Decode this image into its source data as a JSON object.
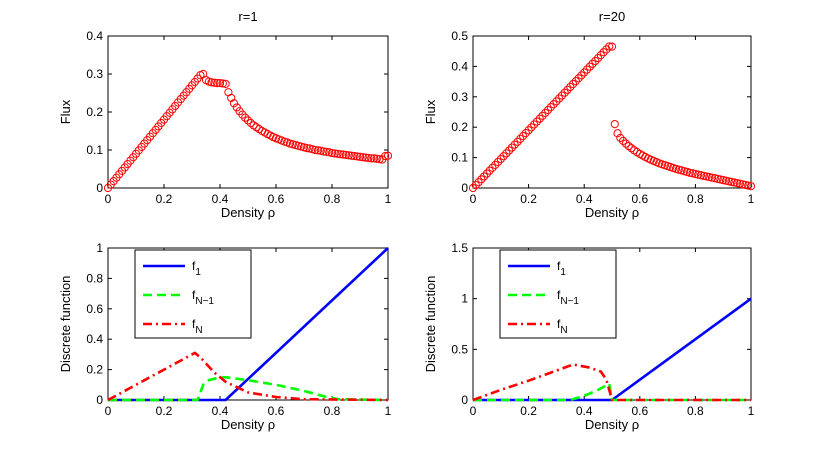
{
  "colors": {
    "flux_marker": "#ff0000",
    "f1": "#0000ff",
    "fN1": "#00ff00",
    "fN": "#ff0000",
    "axis": "#000000"
  },
  "chart_data": [
    {
      "type": "scatter",
      "title": "r=1",
      "xlabel": "Density ρ",
      "ylabel": "Flux",
      "xlim": [
        0,
        1
      ],
      "ylim": [
        0,
        0.4
      ],
      "xticks": [
        "0",
        "0.2",
        "0.4",
        "0.6",
        "0.8",
        "1"
      ],
      "yticks": [
        "0",
        "0.1",
        "0.2",
        "0.3",
        "0.4"
      ],
      "marker": "circle",
      "x": [
        0,
        0.01,
        0.02,
        0.03,
        0.04,
        0.05,
        0.06,
        0.07,
        0.08,
        0.09,
        0.1,
        0.11,
        0.12,
        0.13,
        0.14,
        0.15,
        0.16,
        0.17,
        0.18,
        0.19,
        0.2,
        0.21,
        0.22,
        0.23,
        0.24,
        0.25,
        0.26,
        0.27,
        0.28,
        0.29,
        0.3,
        0.31,
        0.32,
        0.33,
        0.34,
        0.35,
        0.36,
        0.37,
        0.38,
        0.39,
        0.4,
        0.41,
        0.42,
        0.43,
        0.44,
        0.45,
        0.46,
        0.47,
        0.48,
        0.49,
        0.5,
        0.51,
        0.52,
        0.53,
        0.54,
        0.55,
        0.56,
        0.57,
        0.58,
        0.59,
        0.6,
        0.61,
        0.62,
        0.63,
        0.64,
        0.65,
        0.66,
        0.67,
        0.68,
        0.69,
        0.7,
        0.71,
        0.72,
        0.73,
        0.74,
        0.75,
        0.76,
        0.77,
        0.78,
        0.79,
        0.8,
        0.81,
        0.82,
        0.83,
        0.84,
        0.85,
        0.86,
        0.87,
        0.88,
        0.89,
        0.9,
        0.91,
        0.92,
        0.93,
        0.94,
        0.95,
        0.96,
        0.97,
        0.98,
        0.99,
        1
      ],
      "y": [
        0,
        0.009,
        0.018,
        0.027,
        0.036,
        0.045,
        0.054,
        0.063,
        0.072,
        0.081,
        0.09,
        0.099,
        0.108,
        0.117,
        0.126,
        0.135,
        0.144,
        0.153,
        0.162,
        0.171,
        0.18,
        0.189,
        0.198,
        0.207,
        0.216,
        0.225,
        0.234,
        0.243,
        0.252,
        0.261,
        0.27,
        0.279,
        0.288,
        0.297,
        0.3,
        0.284,
        0.28,
        0.278,
        0.277,
        0.276,
        0.276,
        0.275,
        0.274,
        0.252,
        0.237,
        0.223,
        0.212,
        0.202,
        0.193,
        0.185,
        0.178,
        0.171,
        0.165,
        0.16,
        0.155,
        0.15,
        0.146,
        0.142,
        0.138,
        0.134,
        0.131,
        0.128,
        0.125,
        0.122,
        0.12,
        0.117,
        0.115,
        0.113,
        0.111,
        0.109,
        0.107,
        0.105,
        0.104,
        0.102,
        0.1,
        0.099,
        0.098,
        0.096,
        0.095,
        0.094,
        0.092,
        0.091,
        0.09,
        0.089,
        0.088,
        0.087,
        0.086,
        0.085,
        0.084,
        0.083,
        0.082,
        0.081,
        0.08,
        0.079,
        0.078,
        0.078,
        0.077,
        0.076,
        0.075,
        0.084,
        0.085
      ]
    },
    {
      "type": "scatter",
      "title": "r=20",
      "xlabel": "Density ρ",
      "ylabel": "Flux",
      "xlim": [
        0,
        1
      ],
      "ylim": [
        0,
        0.5
      ],
      "xticks": [
        "0",
        "0.2",
        "0.4",
        "0.6",
        "0.8",
        "1"
      ],
      "yticks": [
        "0",
        "0.1",
        "0.2",
        "0.3",
        "0.4",
        "0.5"
      ],
      "marker": "circle",
      "x": [
        0,
        0.01,
        0.02,
        0.03,
        0.04,
        0.05,
        0.06,
        0.07,
        0.08,
        0.09,
        0.1,
        0.11,
        0.12,
        0.13,
        0.14,
        0.15,
        0.16,
        0.17,
        0.18,
        0.19,
        0.2,
        0.21,
        0.22,
        0.23,
        0.24,
        0.25,
        0.26,
        0.27,
        0.28,
        0.29,
        0.3,
        0.31,
        0.32,
        0.33,
        0.34,
        0.35,
        0.36,
        0.37,
        0.38,
        0.39,
        0.4,
        0.41,
        0.42,
        0.43,
        0.44,
        0.45,
        0.46,
        0.47,
        0.48,
        0.49,
        0.5,
        0.51,
        0.52,
        0.53,
        0.54,
        0.55,
        0.56,
        0.57,
        0.58,
        0.59,
        0.6,
        0.61,
        0.62,
        0.63,
        0.64,
        0.65,
        0.66,
        0.67,
        0.68,
        0.69,
        0.7,
        0.71,
        0.72,
        0.73,
        0.74,
        0.75,
        0.76,
        0.77,
        0.78,
        0.79,
        0.8,
        0.81,
        0.82,
        0.83,
        0.84,
        0.85,
        0.86,
        0.87,
        0.88,
        0.89,
        0.9,
        0.91,
        0.92,
        0.93,
        0.94,
        0.95,
        0.96,
        0.97,
        0.98,
        0.99,
        1
      ],
      "y": [
        0,
        0.0095,
        0.019,
        0.0285,
        0.038,
        0.0475,
        0.057,
        0.0665,
        0.076,
        0.0855,
        0.095,
        0.1045,
        0.114,
        0.1235,
        0.133,
        0.1425,
        0.152,
        0.1615,
        0.171,
        0.1805,
        0.19,
        0.1995,
        0.209,
        0.2185,
        0.228,
        0.2375,
        0.247,
        0.2565,
        0.266,
        0.2755,
        0.285,
        0.2945,
        0.304,
        0.3135,
        0.323,
        0.3325,
        0.342,
        0.3515,
        0.361,
        0.3705,
        0.38,
        0.3895,
        0.399,
        0.4085,
        0.418,
        0.4275,
        0.437,
        0.4465,
        0.456,
        0.4655,
        0.465,
        0.21,
        0.18,
        0.165,
        0.155,
        0.146,
        0.138,
        0.131,
        0.124,
        0.118,
        0.112,
        0.107,
        0.102,
        0.097,
        0.093,
        0.089,
        0.085,
        0.081,
        0.078,
        0.075,
        0.072,
        0.069,
        0.066,
        0.063,
        0.06,
        0.058,
        0.055,
        0.053,
        0.05,
        0.048,
        0.046,
        0.044,
        0.042,
        0.04,
        0.038,
        0.036,
        0.034,
        0.032,
        0.03,
        0.028,
        0.026,
        0.024,
        0.022,
        0.02,
        0.018,
        0.016,
        0.014,
        0.012,
        0.01,
        0.008,
        0.006
      ]
    },
    {
      "type": "line",
      "title": "",
      "xlabel": "Density ρ",
      "ylabel": "Discrete function",
      "xlim": [
        0,
        1
      ],
      "ylim": [
        0,
        1
      ],
      "xticks": [
        "0",
        "0.2",
        "0.4",
        "0.6",
        "0.8",
        "1"
      ],
      "yticks": [
        "0",
        "0.2",
        "0.4",
        "0.6",
        "0.8",
        "1"
      ],
      "legend": {
        "placement": "top-left",
        "entries": [
          {
            "base": "f",
            "sub": "1"
          },
          {
            "base": "f",
            "sub": "N−1"
          },
          {
            "base": "f",
            "sub": "N"
          }
        ]
      },
      "series": [
        {
          "name": "f1",
          "style": "solid",
          "x": [
            0,
            0.42,
            1
          ],
          "y": [
            0,
            0,
            1
          ]
        },
        {
          "name": "fN−1",
          "style": "dashed",
          "x": [
            0,
            0.32,
            0.34,
            0.36,
            0.38,
            0.4,
            0.42,
            0.5,
            0.6,
            0.7,
            0.78,
            0.82,
            1
          ],
          "y": [
            0,
            0,
            0.1,
            0.13,
            0.14,
            0.148,
            0.15,
            0.13,
            0.1,
            0.06,
            0.02,
            0.005,
            0
          ]
        },
        {
          "name": "fN",
          "style": "dashdot",
          "x": [
            0,
            0.1,
            0.2,
            0.31,
            0.33,
            0.38,
            0.42,
            0.5,
            0.6,
            0.7,
            1
          ],
          "y": [
            0,
            0.1,
            0.2,
            0.31,
            0.28,
            0.18,
            0.12,
            0.05,
            0.02,
            0.005,
            0
          ]
        }
      ]
    },
    {
      "type": "line",
      "title": "",
      "xlabel": "Density ρ",
      "ylabel": "Discrete function",
      "xlim": [
        0,
        1
      ],
      "ylim": [
        0,
        1.5
      ],
      "xticks": [
        "0",
        "0.2",
        "0.4",
        "0.6",
        "0.8",
        "1"
      ],
      "yticks": [
        "0",
        "0.5",
        "1",
        "1.5"
      ],
      "legend": {
        "placement": "top-left",
        "entries": [
          {
            "base": "f",
            "sub": "1"
          },
          {
            "base": "f",
            "sub": "N−1"
          },
          {
            "base": "f",
            "sub": "N"
          }
        ]
      },
      "series": [
        {
          "name": "f1",
          "style": "solid",
          "x": [
            0,
            0.5,
            1
          ],
          "y": [
            0,
            0,
            1
          ]
        },
        {
          "name": "fN−1",
          "style": "dashed",
          "x": [
            0,
            0.35,
            0.4,
            0.45,
            0.49,
            0.5,
            1
          ],
          "y": [
            0,
            0,
            0.04,
            0.1,
            0.16,
            0,
            0
          ]
        },
        {
          "name": "fN",
          "style": "dashdot",
          "x": [
            0,
            0.1,
            0.2,
            0.3,
            0.36,
            0.42,
            0.46,
            0.48,
            0.5,
            1
          ],
          "y": [
            0,
            0.1,
            0.19,
            0.29,
            0.35,
            0.32,
            0.28,
            0.2,
            0,
            0
          ]
        }
      ]
    }
  ]
}
